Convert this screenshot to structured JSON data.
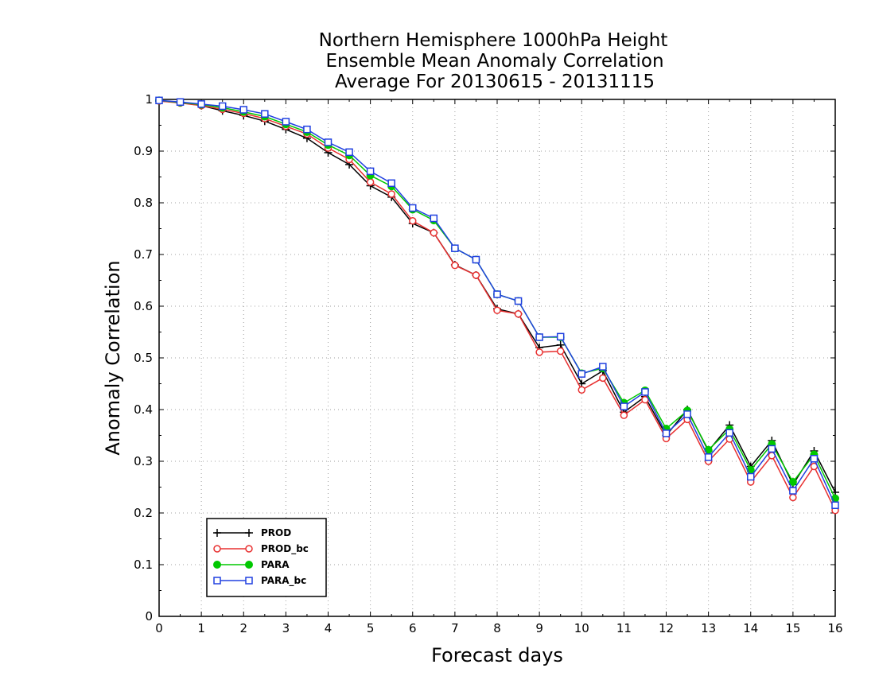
{
  "chart_data": {
    "type": "line",
    "title": [
      "Northern Hemisphere 1000hPa Height",
      "Ensemble Mean Anomaly Correlation",
      "Average For 20130615 - 20131115"
    ],
    "xlabel": "Forecast days",
    "ylabel": "Anomaly Correlation",
    "xlim": [
      0,
      16
    ],
    "ylim": [
      0,
      1
    ],
    "x_ticks": [
      "0",
      "1",
      "2",
      "3",
      "4",
      "5",
      "6",
      "7",
      "8",
      "9",
      "10",
      "11",
      "12",
      "13",
      "14",
      "15",
      "16"
    ],
    "y_ticks": [
      "0",
      "0.1",
      "0.2",
      "0.3",
      "0.4",
      "0.5",
      "0.6",
      "0.7",
      "0.8",
      "0.9",
      "1"
    ],
    "grid": true,
    "legend_position": "bottom-left",
    "x": [
      0,
      0.5,
      1,
      1.5,
      2,
      2.5,
      3,
      3.5,
      4,
      4.5,
      5,
      5.5,
      6,
      6.5,
      7,
      7.5,
      8,
      8.5,
      9,
      9.5,
      10,
      10.5,
      11,
      11.5,
      12,
      12.5,
      13,
      13.5,
      14,
      14.5,
      15,
      15.5,
      16
    ],
    "series": [
      {
        "name": "PROD",
        "color": "#000000",
        "marker": "plus",
        "values": [
          0.997,
          0.994,
          0.988,
          0.978,
          0.969,
          0.958,
          0.942,
          0.925,
          0.897,
          0.874,
          0.833,
          0.811,
          0.76,
          0.742,
          0.68,
          0.66,
          0.595,
          0.585,
          0.52,
          0.525,
          0.45,
          0.475,
          0.395,
          0.425,
          0.35,
          0.4,
          0.32,
          0.37,
          0.29,
          0.34,
          0.255,
          0.32,
          0.24
        ]
      },
      {
        "name": "PROD_bc",
        "color": "#e83030",
        "marker": "open-circle",
        "values": [
          0.997,
          0.993,
          0.988,
          0.981,
          0.973,
          0.963,
          0.948,
          0.933,
          0.906,
          0.884,
          0.84,
          0.817,
          0.765,
          0.742,
          0.679,
          0.66,
          0.592,
          0.585,
          0.511,
          0.513,
          0.438,
          0.461,
          0.389,
          0.419,
          0.344,
          0.381,
          0.3,
          0.343,
          0.26,
          0.311,
          0.23,
          0.29,
          0.205
        ]
      },
      {
        "name": "PARA",
        "color": "#00c800",
        "marker": "filled-circle",
        "values": [
          0.998,
          0.994,
          0.99,
          0.984,
          0.976,
          0.967,
          0.952,
          0.937,
          0.912,
          0.892,
          0.853,
          0.832,
          0.787,
          0.766,
          0.712,
          0.69,
          0.623,
          0.61,
          0.54,
          0.54,
          0.47,
          0.48,
          0.413,
          0.437,
          0.363,
          0.398,
          0.322,
          0.362,
          0.283,
          0.333,
          0.26,
          0.313,
          0.228
        ]
      },
      {
        "name": "PARA_bc",
        "color": "#2040e0",
        "marker": "open-square",
        "values": [
          0.998,
          0.995,
          0.991,
          0.987,
          0.98,
          0.972,
          0.957,
          0.942,
          0.917,
          0.898,
          0.861,
          0.838,
          0.79,
          0.77,
          0.712,
          0.69,
          0.623,
          0.61,
          0.54,
          0.541,
          0.469,
          0.483,
          0.406,
          0.434,
          0.354,
          0.391,
          0.308,
          0.355,
          0.27,
          0.324,
          0.243,
          0.305,
          0.215
        ]
      }
    ]
  }
}
